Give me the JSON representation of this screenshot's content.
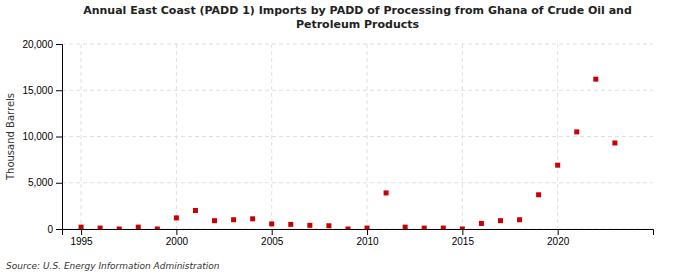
{
  "chart_data": {
    "type": "scatter",
    "title": "Annual East Coast (PADD 1) Imports by PADD of Processing from Ghana of Crude Oil and\nPetroleum Products",
    "ylabel": "Thousand Barrels",
    "source": "Source: U.S. Energy Information Administration",
    "x": [
      1995,
      1996,
      1997,
      1998,
      1999,
      2000,
      2001,
      2002,
      2003,
      2004,
      2005,
      2006,
      2007,
      2008,
      2009,
      2010,
      2011,
      2012,
      2013,
      2014,
      2015,
      2016,
      2017,
      2018,
      2019,
      2020,
      2021,
      2022,
      2023
    ],
    "values": [
      200,
      100,
      0,
      200,
      0,
      1200,
      2000,
      900,
      1000,
      1100,
      550,
      500,
      400,
      350,
      0,
      100,
      3900,
      200,
      100,
      100,
      0,
      600,
      900,
      1000,
      3700,
      6900,
      10500,
      16200,
      9300
    ],
    "color": "#cc0000",
    "marker": "square",
    "xlim": [
      1994,
      2025
    ],
    "ylim": [
      0,
      20000
    ],
    "xticks": [
      1995,
      2000,
      2005,
      2010,
      2015,
      2020
    ],
    "yticks": [
      0,
      {
        "value": 5000,
        "label": "5,000"
      },
      {
        "value": 10000,
        "label": "10,000"
      },
      {
        "value": 15000,
        "label": "15,000"
      },
      {
        "value": 20000,
        "label": "20,000"
      }
    ],
    "grid": true
  }
}
